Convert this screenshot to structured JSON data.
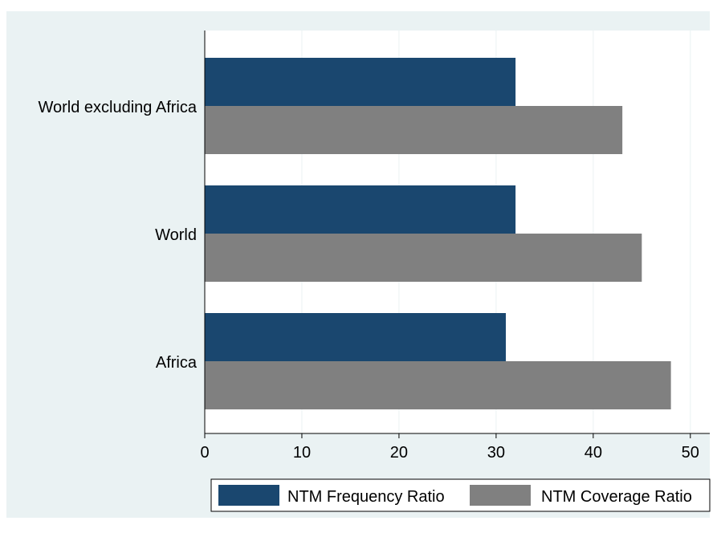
{
  "chart_data": {
    "type": "bar",
    "orientation": "horizontal",
    "categories": [
      "World excluding Africa",
      "World",
      "Africa"
    ],
    "series": [
      {
        "name": "NTM Frequency Ratio",
        "values": [
          32,
          32,
          31
        ],
        "color": "#1a476f"
      },
      {
        "name": "NTM Coverage Ratio",
        "values": [
          43,
          45,
          48
        ],
        "color": "#808080"
      }
    ],
    "title": "",
    "xlabel": "",
    "ylabel": "",
    "xlim": [
      0,
      52
    ],
    "xticks": [
      "0",
      "10",
      "20",
      "30",
      "40",
      "50"
    ],
    "grid": true,
    "legend_position": "bottom"
  },
  "colors": {
    "outer_background": "#eaf2f3",
    "plot_background": "#ffffff",
    "grid": "#eaf2f3"
  }
}
